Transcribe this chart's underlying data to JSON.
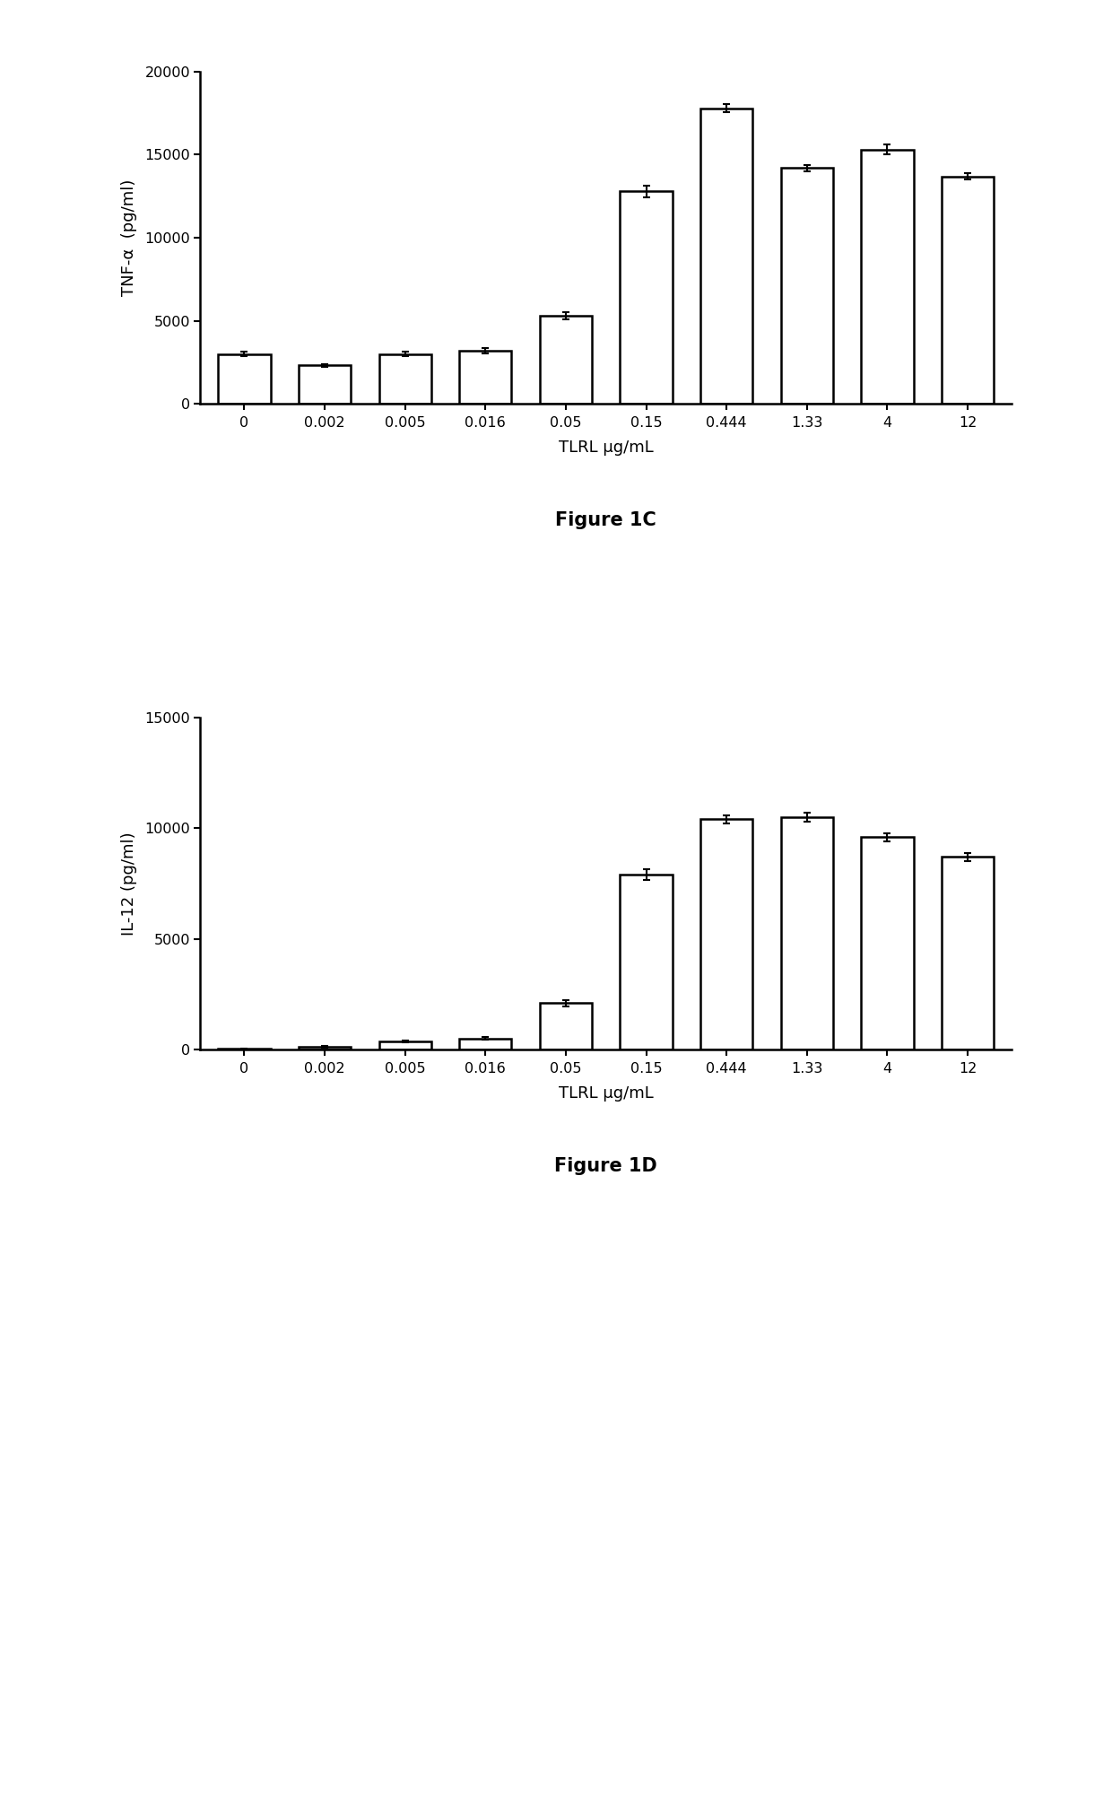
{
  "fig1c": {
    "caption": "Figure 1C",
    "ylabel": "TNF-α  (pg/ml)",
    "xlabel": "TLRL μg/mL",
    "categories": [
      "0",
      "0.002",
      "0.005",
      "0.016",
      "0.05",
      "0.15",
      "0.444",
      "1.33",
      "4",
      "12"
    ],
    "values": [
      3000,
      2300,
      3000,
      3200,
      5300,
      12800,
      17800,
      14200,
      15300,
      13700
    ],
    "errors": [
      150,
      100,
      150,
      150,
      200,
      350,
      250,
      200,
      300,
      200
    ],
    "ylim": [
      0,
      20000
    ],
    "yticks": [
      0,
      5000,
      10000,
      15000,
      20000
    ]
  },
  "fig1d": {
    "caption": "Figure 1D",
    "ylabel": "IL-12 (pg/ml)",
    "xlabel": "TLRL μg/mL",
    "categories": [
      "0",
      "0.002",
      "0.005",
      "0.016",
      "0.05",
      "0.15",
      "0.444",
      "1.33",
      "4",
      "12"
    ],
    "values": [
      30,
      120,
      350,
      500,
      2100,
      7900,
      10400,
      10500,
      9600,
      8700
    ],
    "errors": [
      15,
      25,
      40,
      50,
      150,
      250,
      180,
      190,
      180,
      190
    ],
    "ylim": [
      0,
      15000
    ],
    "yticks": [
      0,
      5000,
      10000,
      15000
    ]
  },
  "bar_color": "#ffffff",
  "bar_edgecolor": "#000000",
  "bar_linewidth": 1.8,
  "bar_width": 0.65,
  "errorbar_color": "#000000",
  "errorbar_capsize": 3,
  "errorbar_linewidth": 1.5,
  "background_color": "#ffffff",
  "caption_fontsize": 15,
  "label_fontsize": 13,
  "tick_fontsize": 11.5,
  "caption_fontstyle": "bold"
}
